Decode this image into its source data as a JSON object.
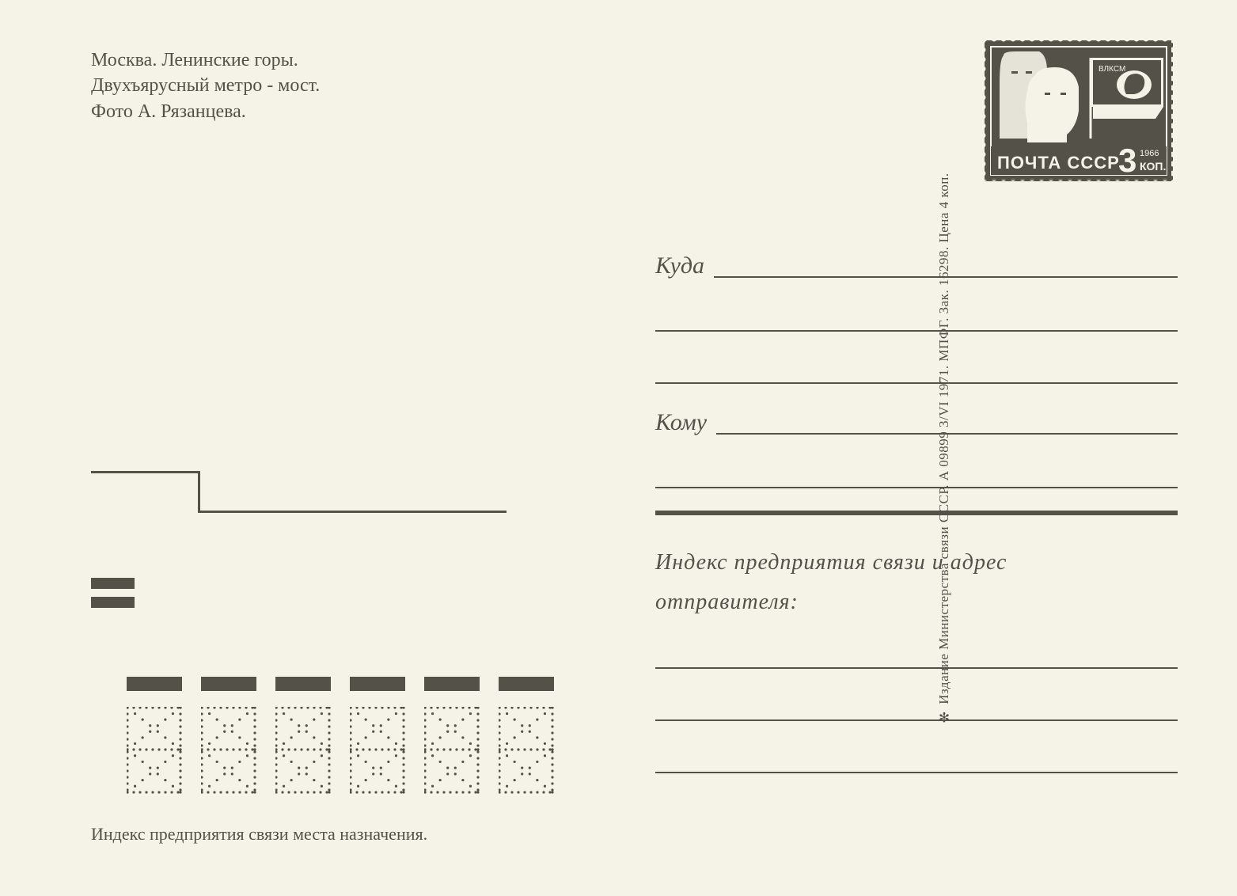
{
  "header": {
    "line1": "Москва. Ленинские горы.",
    "line2": "Двухъярусный метро - мост.",
    "line3": "Фото А. Рязанцева."
  },
  "stamp": {
    "country": "ПОЧТА СССР",
    "value": "3",
    "currency": "КОП.",
    "year": "1966",
    "org": "ВЛКСМ",
    "bg_color": "#545149",
    "perf_color": "#f5f2e8"
  },
  "vertical_publisher": "✻  Издание Министерства связи СССР. А 09899 3/VI 1971. МПФГ. Зак. 16298. Цена 4 коп.",
  "address": {
    "to_where": "Куда",
    "to_whom": "Кому",
    "sender_line1": "Индекс предприятия связи и адрес",
    "sender_line2": "отправителя:"
  },
  "bottom_label": "Индекс предприятия связи места назначения.",
  "colors": {
    "ink": "#545149",
    "paper": "#f5f2e8"
  },
  "index_box_count": 6
}
